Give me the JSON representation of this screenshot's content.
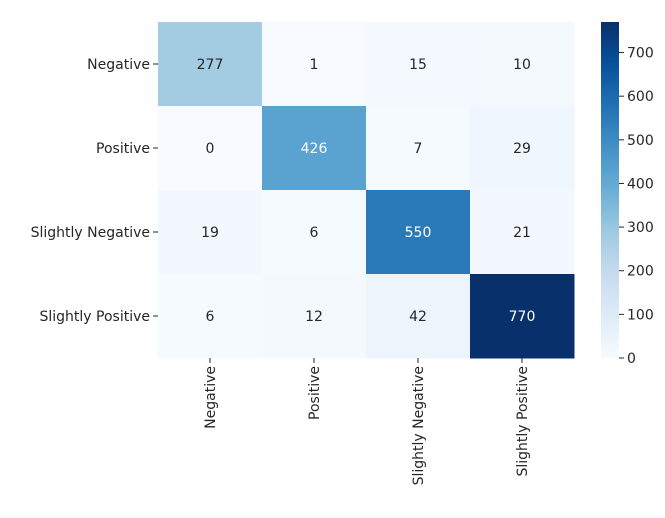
{
  "chart_data": {
    "type": "heatmap",
    "title": "",
    "xlabel": "",
    "ylabel": "",
    "rows": [
      "Negative",
      "Positive",
      "Slightly Negative",
      "Slightly Positive"
    ],
    "columns": [
      "Negative",
      "Positive",
      "Slightly Negative",
      "Slightly Positive"
    ],
    "values": [
      [
        277,
        1,
        15,
        10
      ],
      [
        0,
        426,
        7,
        29
      ],
      [
        19,
        6,
        550,
        21
      ],
      [
        6,
        12,
        42,
        770
      ]
    ],
    "colormap": "Blues",
    "colormap_colors": [
      "#f7fbff",
      "#deebf7",
      "#c6dbef",
      "#9ecae1",
      "#6baed6",
      "#4292c6",
      "#2171b5",
      "#08519c",
      "#08306b"
    ],
    "vmin": 0,
    "vmax": 770,
    "colorbar_ticks": [
      0,
      100,
      200,
      300,
      400,
      500,
      600,
      700
    ],
    "colorbar_tick_labels": [
      "0",
      "100",
      "200",
      "300",
      "400",
      "500",
      "600",
      "700"
    ],
    "text_color_dark": "#262626",
    "text_color_light": "#ffffff"
  }
}
